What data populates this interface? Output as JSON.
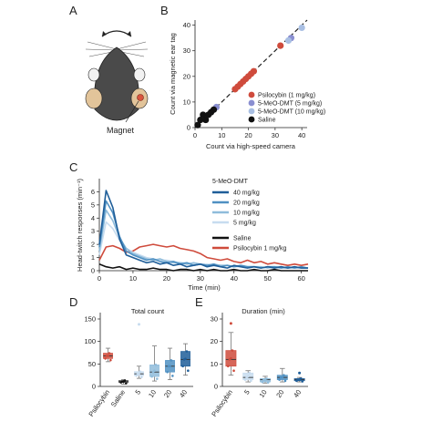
{
  "panels": {
    "A": {
      "letter": "A",
      "magnet_label": "Magnet"
    },
    "B": {
      "letter": "B"
    },
    "C": {
      "letter": "C"
    },
    "D": {
      "letter": "D"
    },
    "E": {
      "letter": "E"
    }
  },
  "colors": {
    "psilocybin": "#cf4b3c",
    "meo_5": "#c7dcef",
    "meo_10": "#8fbcdb",
    "meo_20": "#4f90c2",
    "meo_40": "#1f5e99",
    "saline": "#111111",
    "meo_scatter_5": "#8a8fd1",
    "meo_scatter_10": "#a9bfe3"
  },
  "chart_data": [
    {
      "id": "B",
      "type": "scatter",
      "xlabel": "Count via high-speed camera",
      "ylabel": "Count via magnetic ear tag",
      "xlim": [
        0,
        42
      ],
      "ylim": [
        0,
        42
      ],
      "xticks": [
        "0",
        "10",
        "20",
        "30",
        "40"
      ],
      "yticks": [
        "0",
        "10",
        "20",
        "30",
        "40"
      ],
      "identity_line": true,
      "legend_position": "lower-right",
      "series": [
        {
          "name": "Psilocybin (1 mg/kg)",
          "color_key": "psilocybin",
          "points": [
            [
              15,
              15
            ],
            [
              16,
              16
            ],
            [
              17,
              17
            ],
            [
              18,
              18
            ],
            [
              19,
              19
            ],
            [
              20,
              20
            ],
            [
              21,
              21
            ],
            [
              22,
              22
            ],
            [
              32,
              32
            ]
          ]
        },
        {
          "name": "5-MeO-DMT (5 mg/kg)",
          "color_key": "meo_scatter_5",
          "points": [
            [
              8,
              8
            ],
            [
              36,
              35
            ]
          ]
        },
        {
          "name": "5-MeO-DMT (10 mg/kg)",
          "color_key": "meo_scatter_10",
          "points": [
            [
              35,
              34
            ],
            [
              40,
              39
            ]
          ]
        },
        {
          "name": "Saline",
          "color_key": "saline",
          "points": [
            [
              1,
              1
            ],
            [
              2,
              3
            ],
            [
              3,
              5
            ],
            [
              4,
              3
            ],
            [
              5,
              5
            ],
            [
              6,
              6
            ],
            [
              7,
              7
            ]
          ]
        }
      ]
    },
    {
      "id": "C",
      "type": "line",
      "xlabel": "Time (min)",
      "ylabel": "Head-twitch responses (min⁻¹)",
      "xlim": [
        0,
        62
      ],
      "ylim": [
        0,
        7
      ],
      "xticks": [
        "0",
        "10",
        "20",
        "30",
        "40",
        "50",
        "60"
      ],
      "yticks": [
        "0",
        "1",
        "2",
        "3",
        "4",
        "5",
        "6"
      ],
      "legend_title": "5-MeO-DMT",
      "x": [
        0,
        2,
        4,
        6,
        8,
        10,
        12,
        14,
        16,
        18,
        20,
        22,
        24,
        26,
        28,
        30,
        32,
        34,
        36,
        38,
        40,
        42,
        44,
        46,
        48,
        50,
        52,
        54,
        56,
        58,
        60,
        62
      ],
      "series": [
        {
          "name": "40 mg/kg",
          "color_key": "meo_40",
          "values": [
            2.0,
            6.1,
            4.8,
            2.4,
            1.2,
            1.0,
            0.8,
            0.6,
            0.7,
            0.5,
            0.6,
            0.4,
            0.5,
            0.3,
            0.4,
            0.5,
            0.3,
            0.4,
            0.3,
            0.2,
            0.4,
            0.3,
            0.2,
            0.3,
            0.2,
            0.3,
            0.2,
            0.3,
            0.2,
            0.3,
            0.2,
            0.2
          ]
        },
        {
          "name": "20 mg/kg",
          "color_key": "meo_20",
          "values": [
            1.8,
            5.3,
            4.4,
            2.6,
            1.5,
            1.2,
            1.0,
            0.8,
            0.9,
            0.7,
            0.6,
            0.7,
            0.5,
            0.6,
            0.4,
            0.5,
            0.4,
            0.5,
            0.3,
            0.4,
            0.3,
            0.4,
            0.3,
            0.3,
            0.2,
            0.3,
            0.3,
            0.2,
            0.3,
            0.2,
            0.3,
            0.2
          ]
        },
        {
          "name": "10 mg/kg",
          "color_key": "meo_10",
          "values": [
            1.5,
            4.6,
            3.8,
            2.5,
            1.7,
            1.3,
            1.1,
            0.9,
            0.8,
            0.9,
            0.7,
            0.6,
            0.6,
            0.5,
            0.6,
            0.5,
            0.4,
            0.5,
            0.4,
            0.4,
            0.3,
            0.4,
            0.3,
            0.3,
            0.3,
            0.2,
            0.3,
            0.3,
            0.2,
            0.3,
            0.2,
            0.2
          ]
        },
        {
          "name": "5 mg/kg",
          "color_key": "meo_5",
          "values": [
            1.2,
            3.7,
            3.2,
            2.3,
            1.7,
            1.4,
            1.2,
            1.0,
            0.9,
            0.8,
            0.8,
            0.7,
            0.6,
            0.6,
            0.5,
            0.5,
            0.5,
            0.4,
            0.4,
            0.4,
            0.3,
            0.3,
            0.3,
            0.3,
            0.2,
            0.3,
            0.3,
            0.2,
            0.2,
            0.2,
            0.2,
            0.2
          ]
        },
        {
          "name": "Saline",
          "color_key": "saline",
          "values": [
            0.5,
            0.3,
            0.2,
            0.3,
            0.1,
            0.2,
            0.1,
            0.1,
            0.2,
            0.1,
            0.1,
            0.0,
            0.1,
            0.1,
            0.0,
            0.1,
            0.0,
            0.1,
            0.0,
            0.0,
            0.1,
            0.0,
            0.0,
            0.1,
            0.0,
            0.0,
            0.1,
            0.0,
            0.0,
            0.0,
            0.0,
            0.0
          ]
        },
        {
          "name": "Psilocybin 1 mg/kg",
          "color_key": "psilocybin",
          "values": [
            0.8,
            1.8,
            1.9,
            1.7,
            1.4,
            1.5,
            1.8,
            1.9,
            2.0,
            1.9,
            1.8,
            1.9,
            1.7,
            1.6,
            1.5,
            1.3,
            1.0,
            0.9,
            0.8,
            0.9,
            0.7,
            0.6,
            0.8,
            0.6,
            0.7,
            0.5,
            0.6,
            0.5,
            0.4,
            0.5,
            0.4,
            0.5
          ]
        }
      ]
    },
    {
      "id": "D",
      "type": "box",
      "title": "Total count",
      "ylim": [
        0,
        150
      ],
      "yticks": [
        "0",
        "50",
        "100",
        "150"
      ],
      "categories": [
        "Psilocybin",
        "Saline",
        "5",
        "10",
        "20",
        "40"
      ],
      "color_keys": [
        "psilocybin",
        "saline",
        "meo_5",
        "meo_10",
        "meo_20",
        "meo_40"
      ],
      "boxes": [
        {
          "min": 55,
          "q1": 62,
          "median": 68,
          "q3": 74,
          "max": 85,
          "outliers": []
        },
        {
          "min": 5,
          "q1": 9,
          "median": 11,
          "q3": 13,
          "max": 15,
          "outliers": []
        },
        {
          "min": 18,
          "q1": 24,
          "median": 28,
          "q3": 33,
          "max": 45,
          "outliers": [
            138
          ]
        },
        {
          "min": 12,
          "q1": 22,
          "median": 32,
          "q3": 48,
          "max": 90,
          "outliers": []
        },
        {
          "min": 15,
          "q1": 32,
          "median": 45,
          "q3": 58,
          "max": 85,
          "outliers": []
        },
        {
          "min": 25,
          "q1": 45,
          "median": 60,
          "q3": 78,
          "max": 95,
          "outliers": []
        }
      ]
    },
    {
      "id": "E",
      "type": "box",
      "title": "Duration (min)",
      "ylim": [
        0,
        30
      ],
      "yticks": [
        "0",
        "10",
        "20",
        "30"
      ],
      "categories": [
        "Psilocybin",
        "5",
        "10",
        "20",
        "40"
      ],
      "color_keys": [
        "psilocybin",
        "meo_5",
        "meo_10",
        "meo_20",
        "meo_40"
      ],
      "boxes": [
        {
          "min": 5,
          "q1": 9,
          "median": 12,
          "q3": 16,
          "max": 24,
          "outliers": [
            28
          ]
        },
        {
          "min": 2,
          "q1": 3,
          "median": 4,
          "q3": 6,
          "max": 7,
          "outliers": []
        },
        {
          "min": 1.5,
          "q1": 2,
          "median": 3,
          "q3": 3.5,
          "max": 4.5,
          "outliers": []
        },
        {
          "min": 2,
          "q1": 3,
          "median": 4,
          "q3": 5,
          "max": 8,
          "outliers": []
        },
        {
          "min": 2,
          "q1": 2.5,
          "median": 3,
          "q3": 3.5,
          "max": 4,
          "outliers": [
            6
          ]
        }
      ]
    }
  ]
}
